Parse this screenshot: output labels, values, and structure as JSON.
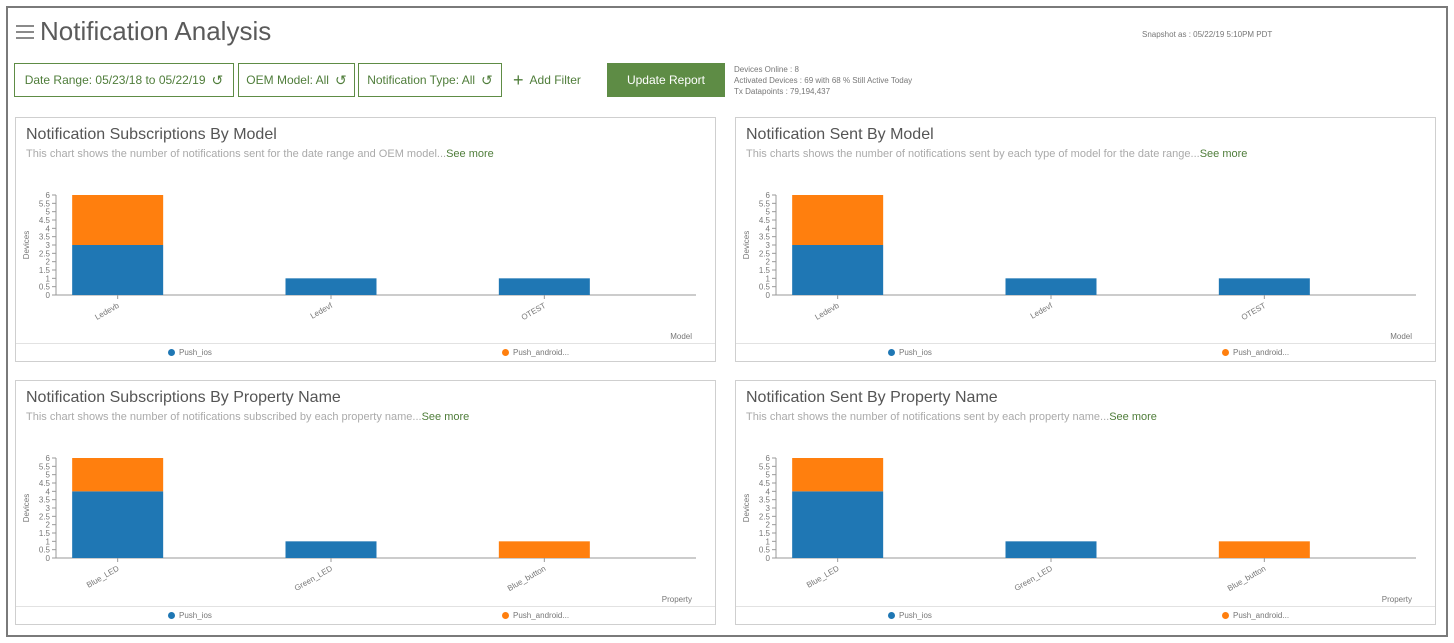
{
  "header": {
    "title": "Notification Analysis",
    "snapshot": "Snapshot as : 05/22/19 5:10PM PDT"
  },
  "filters": {
    "date_range": "Date Range: 05/23/18 to 05/22/19",
    "oem_model": "OEM Model: All",
    "notification_type": "Notification Type: All",
    "reset_glyph": "↺",
    "add_filter": "Add Filter",
    "add_glyph": "+"
  },
  "update_button": "Update Report",
  "stats": {
    "devices_online": "Devices Online : 8",
    "activated_devices": "Activated Devices : 69 with 68 % Still Active Today",
    "tx_datapoints": "Tx Datapoints : 79,194,437"
  },
  "colors": {
    "accent": "#5e8c45",
    "push_ios": "#1f77b4",
    "push_android": "#ff7f0e"
  },
  "see_more": "See more",
  "panels": [
    {
      "title": "Notification Subscriptions By Model",
      "description": "This chart shows the number of notifications sent for the date range and OEM model...",
      "legend": [
        "Push_ios",
        "Push_android..."
      ]
    },
    {
      "title": "Notification Sent By Model",
      "description": "This charts shows the number of notifications sent by each type of model for the date range...",
      "legend": [
        "Push_ios",
        "Push_android..."
      ]
    },
    {
      "title": "Notification Subscriptions By Property Name",
      "description": "This chart shows the number of notifications subscribed by each property name...",
      "legend": [
        "Push_ios",
        "Push_android..."
      ]
    },
    {
      "title": "Notification Sent By Property Name",
      "description": "This chart shows the number of notifications sent by each property name...",
      "legend": [
        "Push_ios",
        "Push_android..."
      ]
    }
  ],
  "chart_data": [
    {
      "type": "bar",
      "stacked": true,
      "categories": [
        "Ledevb",
        "Ledevf",
        "OTEST"
      ],
      "series": [
        {
          "name": "Push_ios",
          "values": [
            3,
            1,
            1
          ]
        },
        {
          "name": "Push_android...",
          "values": [
            3,
            0,
            0
          ]
        }
      ],
      "xlabel": "Model",
      "ylabel": "Devices",
      "ylim": [
        0,
        6
      ],
      "yticks": [
        "0",
        "0.5",
        "1",
        "1.5",
        "2",
        "2.5",
        "3",
        "3.5",
        "4",
        "4.5",
        "5",
        "5.5",
        "6"
      ],
      "legend_position": "bottom"
    },
    {
      "type": "bar",
      "stacked": true,
      "categories": [
        "Ledevb",
        "Ledevf",
        "OTEST"
      ],
      "series": [
        {
          "name": "Push_ios",
          "values": [
            3,
            1,
            1
          ]
        },
        {
          "name": "Push_android...",
          "values": [
            3,
            0,
            0
          ]
        }
      ],
      "xlabel": "Model",
      "ylabel": "Devices",
      "ylim": [
        0,
        6
      ],
      "yticks": [
        "0",
        "0.5",
        "1",
        "1.5",
        "2",
        "2.5",
        "3",
        "3.5",
        "4",
        "4.5",
        "5",
        "5.5",
        "6"
      ],
      "legend_position": "bottom"
    },
    {
      "type": "bar",
      "stacked": true,
      "categories": [
        "Blue_LED",
        "Green_LED",
        "Blue_button"
      ],
      "series": [
        {
          "name": "Push_ios",
          "values": [
            4,
            1,
            0
          ]
        },
        {
          "name": "Push_android...",
          "values": [
            2,
            0,
            1
          ]
        }
      ],
      "xlabel": "Property",
      "ylabel": "Devices",
      "ylim": [
        0,
        6
      ],
      "yticks": [
        "0",
        "0.5",
        "1",
        "1.5",
        "2",
        "2.5",
        "3",
        "3.5",
        "4",
        "4.5",
        "5",
        "5.5",
        "6"
      ],
      "legend_position": "bottom"
    },
    {
      "type": "bar",
      "stacked": true,
      "categories": [
        "Blue_LED",
        "Green_LED",
        "Blue_button"
      ],
      "series": [
        {
          "name": "Push_ios",
          "values": [
            4,
            1,
            0
          ]
        },
        {
          "name": "Push_android...",
          "values": [
            2,
            0,
            1
          ]
        }
      ],
      "xlabel": "Property",
      "ylabel": "Devices",
      "ylim": [
        0,
        6
      ],
      "yticks": [
        "0",
        "0.5",
        "1",
        "1.5",
        "2",
        "2.5",
        "3",
        "3.5",
        "4",
        "4.5",
        "5",
        "5.5",
        "6"
      ],
      "legend_position": "bottom"
    }
  ]
}
